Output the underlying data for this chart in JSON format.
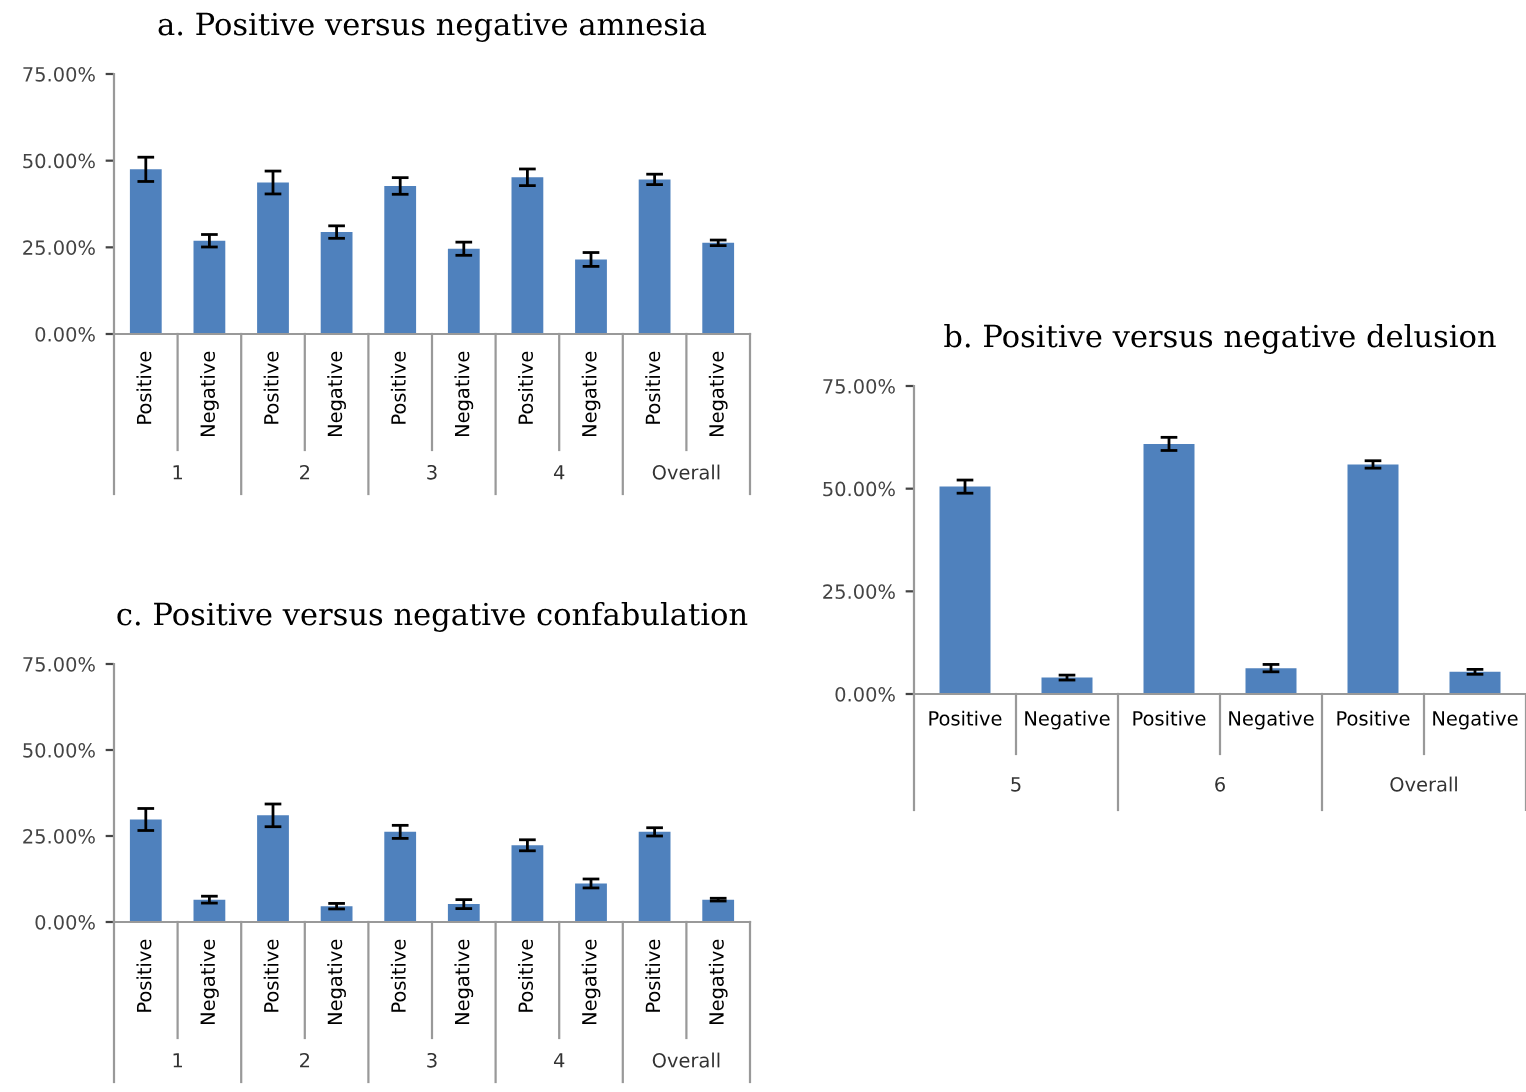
{
  "chart_data": [
    {
      "type": "bar",
      "title": "a. Positive versus negative amnesia",
      "categories": [
        "Positive",
        "Negative",
        "Positive",
        "Negative",
        "Positive",
        "Negative",
        "Positive",
        "Negative",
        "Positive",
        "Negative"
      ],
      "values": [
        47.5,
        26.9,
        43.7,
        29.4,
        42.7,
        24.6,
        45.2,
        21.5,
        44.6,
        26.3
      ],
      "errors": [
        3.5,
        1.8,
        3.3,
        1.8,
        2.4,
        1.9,
        2.4,
        2.0,
        1.5,
        0.8
      ],
      "color": "#4f81bd",
      "annotations": [
        "1",
        "2",
        "3",
        "4",
        "Overall"
      ],
      "ylim": [
        0,
        75
      ],
      "yticks": [
        {
          "value": 0,
          "label": "0.00%"
        },
        {
          "value": 25,
          "label": "25.00%"
        },
        {
          "value": 50,
          "label": "50.00%"
        },
        {
          "value": 75,
          "label": "75.00%"
        }
      ],
      "grid": false,
      "legend": false
    },
    {
      "type": "bar",
      "title": "b. Positive versus negative delusion",
      "categories": [
        "Positive",
        "Negative",
        "Positive",
        "Negative",
        "Positive",
        "Negative"
      ],
      "values": [
        50.5,
        4.0,
        60.9,
        6.3,
        55.9,
        5.4
      ],
      "errors": [
        1.6,
        0.6,
        1.6,
        0.9,
        0.9,
        0.6
      ],
      "color": "#4f81bd",
      "annotations": [
        "5",
        "6",
        "Overall"
      ],
      "ylim": [
        0,
        75
      ],
      "yticks": [
        {
          "value": 0,
          "label": "0.00%"
        },
        {
          "value": 25,
          "label": "25.00%"
        },
        {
          "value": 50,
          "label": "50.00%"
        },
        {
          "value": 75,
          "label": "75.00%"
        }
      ],
      "grid": false,
      "legend": false
    },
    {
      "type": "bar",
      "title": "c. Positive versus negative confabulation",
      "categories": [
        "Positive",
        "Negative",
        "Positive",
        "Negative",
        "Positive",
        "Negative",
        "Positive",
        "Negative",
        "Positive",
        "Negative"
      ],
      "values": [
        29.8,
        6.5,
        31.0,
        4.6,
        26.2,
        5.2,
        22.3,
        11.2,
        26.2,
        6.5
      ],
      "errors": [
        3.2,
        1.0,
        3.3,
        0.8,
        1.9,
        1.3,
        1.6,
        1.3,
        1.2,
        0.4
      ],
      "color": "#4f81bd",
      "annotations": [
        "1",
        "2",
        "3",
        "4",
        "Overall"
      ],
      "ylim": [
        0,
        75
      ],
      "yticks": [
        {
          "value": 0,
          "label": "0.00%"
        },
        {
          "value": 25,
          "label": "25.00%"
        },
        {
          "value": 50,
          "label": "50.00%"
        },
        {
          "value": 75,
          "label": "75.00%"
        }
      ],
      "grid": false,
      "legend": false
    }
  ]
}
